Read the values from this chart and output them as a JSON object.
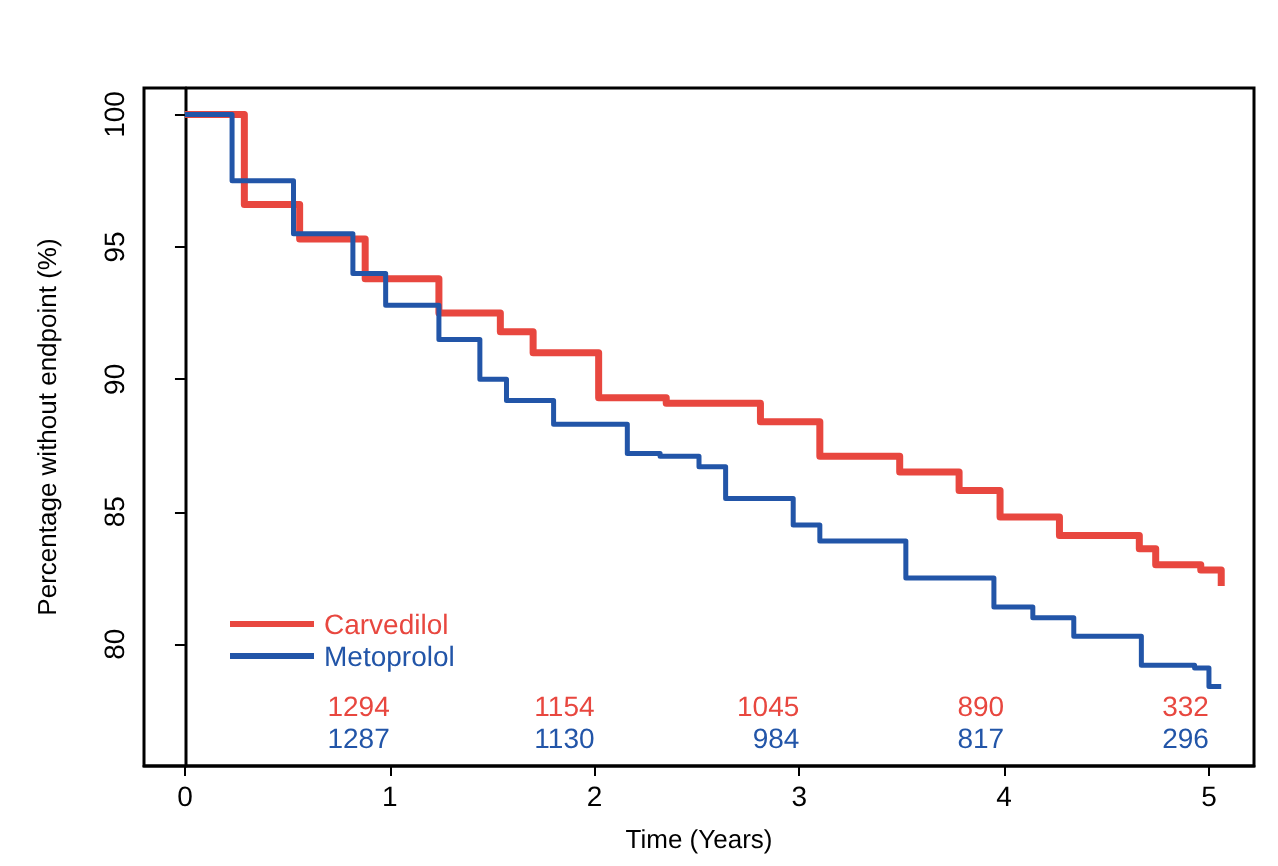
{
  "chart_data": {
    "type": "step",
    "xlabel": "Time (Years)",
    "ylabel": "Percentage without endpoint (%)",
    "xlim": [
      -0.2,
      5.22
    ],
    "ylim": [
      75.4,
      101
    ],
    "xticks": [
      0,
      1,
      2,
      3,
      4,
      5
    ],
    "yticks": [
      80,
      85,
      90,
      95,
      100
    ],
    "legend": "bottom left",
    "marker": "none",
    "line_style": "solid",
    "series": [
      {
        "name": "Carvedilol",
        "color": "#e8473f",
        "x": [
          0,
          0.29,
          0.56,
          0.88,
          1.24,
          1.54,
          1.7,
          2.02,
          2.35,
          2.81,
          3.1,
          3.49,
          3.78,
          3.98,
          4.27,
          4.66,
          4.74,
          4.96,
          5.06
        ],
        "values": [
          100,
          96.6,
          95.3,
          93.8,
          92.5,
          91.8,
          91,
          89.3,
          89.1,
          88.4,
          87.1,
          86.5,
          85.8,
          84.8,
          84.1,
          83.6,
          83,
          82.8,
          82.2
        ]
      },
      {
        "name": "Metoprolol",
        "color": "#2255a8",
        "x": [
          0,
          0.23,
          0.53,
          0.82,
          0.98,
          1.24,
          1.44,
          1.57,
          1.8,
          2.16,
          2.32,
          2.51,
          2.64,
          2.97,
          3.1,
          3.52,
          3.95,
          4.14,
          4.34,
          4.67,
          4.93,
          5.0,
          5.06
        ],
        "values": [
          100,
          97.5,
          95.5,
          94,
          92.8,
          91.5,
          90,
          89.2,
          88.3,
          87.2,
          87.1,
          86.7,
          85.5,
          84.5,
          83.9,
          82.5,
          81.4,
          81,
          80.3,
          79.2,
          79.1,
          78.4,
          78.4
        ]
      }
    ],
    "annotations": [
      "1294",
      "1154",
      "1045",
      "890",
      "332",
      "1287",
      "1130",
      "984",
      "817",
      "296"
    ]
  }
}
